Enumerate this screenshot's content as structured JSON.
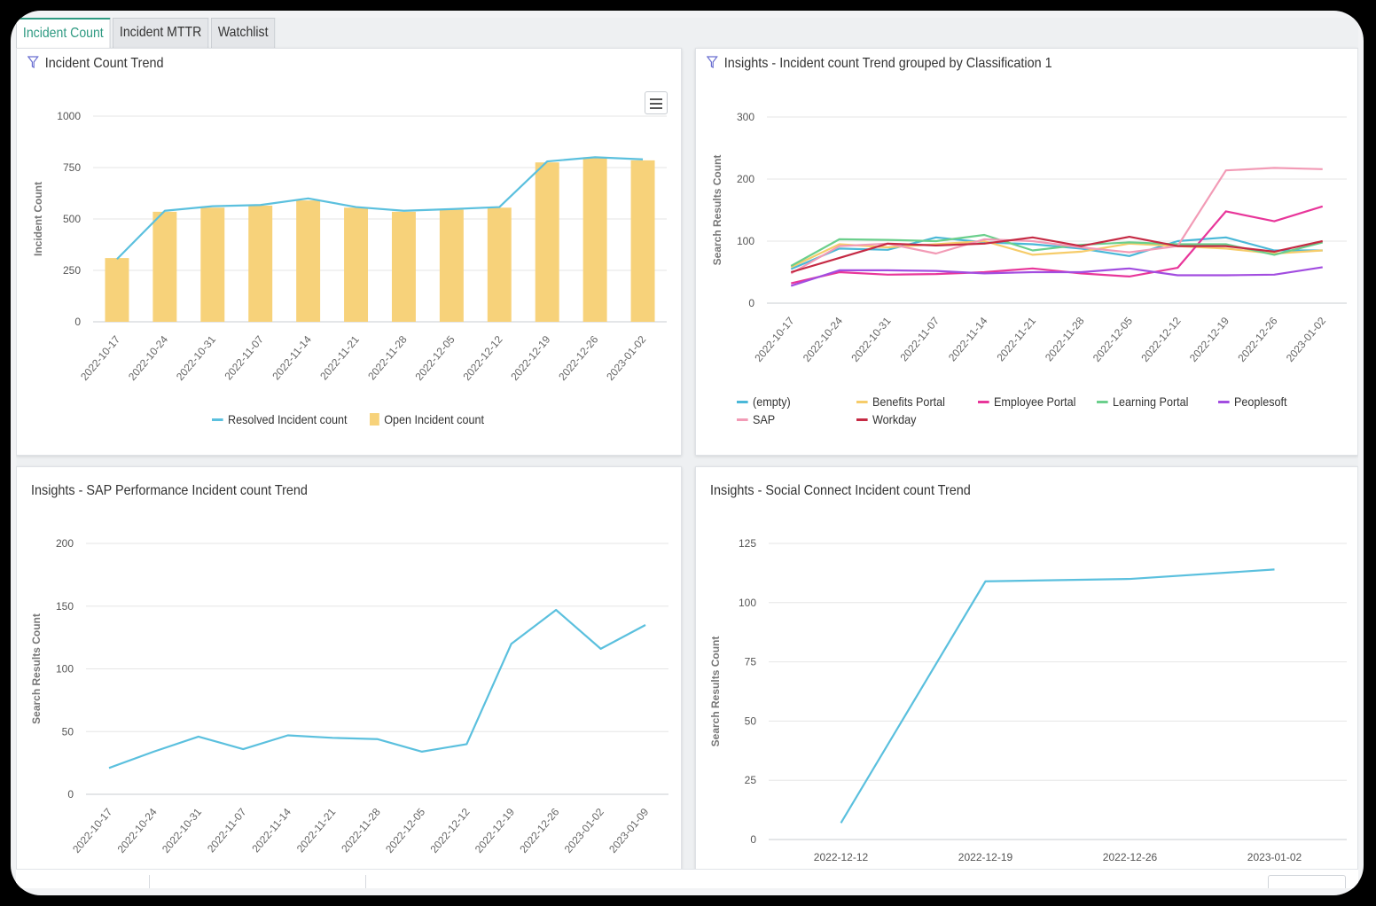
{
  "tabs": [
    "Incident Count",
    "Incident MTTR",
    "Watchlist"
  ],
  "panels": [
    {
      "title": "Incident Count Trend",
      "chart_data": {
        "type": "bar",
        "categories": [
          "2022-10-17",
          "2022-10-24",
          "2022-10-31",
          "2022-11-07",
          "2022-11-14",
          "2022-11-21",
          "2022-11-28",
          "2022-12-05",
          "2022-12-12",
          "2022-12-19",
          "2022-12-26",
          "2023-01-02"
        ],
        "ylabel": "Incident Count",
        "ylim": [
          0,
          1000
        ],
        "yticks": [
          0,
          250,
          500,
          750,
          1000
        ],
        "grid": true,
        "series": [
          {
            "name": "Open Incident count",
            "type": "bar",
            "color": "#f7d27a",
            "values": [
              310,
              535,
              555,
              565,
              590,
              555,
              535,
              545,
              555,
              775,
              800,
              785
            ]
          },
          {
            "name": "Resolved Incident count",
            "type": "line",
            "color": "#5bc0de",
            "values": [
              305,
              540,
              562,
              568,
              600,
              558,
              540,
              548,
              558,
              780,
              800,
              790
            ]
          }
        ],
        "legend_position": "bottom"
      }
    },
    {
      "title": "Insights - Incident count Trend grouped by Classification 1",
      "chart_data": {
        "type": "line",
        "categories": [
          "2022-10-17",
          "2022-10-24",
          "2022-10-31",
          "2022-11-07",
          "2022-11-14",
          "2022-11-21",
          "2022-11-28",
          "2022-12-05",
          "2022-12-12",
          "2022-12-19",
          "2022-12-26",
          "2023-01-02"
        ],
        "ylabel": "Search Results Count",
        "ylim": [
          0,
          300
        ],
        "yticks": [
          0,
          100,
          200,
          300
        ],
        "grid": true,
        "legend_position": "bottom",
        "series": [
          {
            "name": "(empty)",
            "color": "#4ab8d8",
            "values": [
              55,
              88,
              86,
              106,
              98,
              95,
              88,
              76,
              100,
              106,
              85,
              85
            ]
          },
          {
            "name": "Benefits Portal",
            "color": "#f6cc6a",
            "values": [
              58,
              95,
              90,
              95,
              100,
              78,
              83,
              96,
              92,
              88,
              80,
              85
            ]
          },
          {
            "name": "Employee Portal",
            "color": "#e8369a",
            "values": [
              32,
              50,
              46,
              47,
              50,
              56,
              48,
              43,
              57,
              148,
              132,
              156
            ]
          },
          {
            "name": "Learning Portal",
            "color": "#6bcf8c",
            "values": [
              60,
              103,
              102,
              100,
              110,
              85,
              94,
              98,
              95,
              95,
              78,
              98
            ]
          },
          {
            "name": "Peoplesoft",
            "color": "#a24de0",
            "values": [
              28,
              53,
              53,
              52,
              48,
              50,
              50,
              56,
              45,
              45,
              46,
              58
            ]
          },
          {
            "name": "SAP",
            "color": "#f29bb6",
            "values": [
              48,
              92,
              96,
              80,
              103,
              100,
              90,
              82,
              92,
              214,
              218,
              216
            ]
          },
          {
            "name": "Workday",
            "color": "#c52a44",
            "values": [
              50,
              73,
              96,
              93,
              96,
              106,
              92,
              107,
              92,
              92,
              83,
              100
            ]
          }
        ]
      }
    },
    {
      "title": "Insights - SAP Performance Incident count Trend",
      "chart_data": {
        "type": "line",
        "categories": [
          "2022-10-17",
          "2022-10-24",
          "2022-10-31",
          "2022-11-07",
          "2022-11-14",
          "2022-11-21",
          "2022-11-28",
          "2022-12-05",
          "2022-12-12",
          "2022-12-19",
          "2022-12-26",
          "2023-01-02",
          "2023-01-09"
        ],
        "ylabel": "Search Results Count",
        "ylim": [
          0,
          200
        ],
        "yticks": [
          0,
          50,
          100,
          150,
          200
        ],
        "grid": true,
        "series": [
          {
            "name": "",
            "color": "#5bc0de",
            "values": [
              21,
              34,
              46,
              36,
              47,
              45,
              44,
              34,
              40,
              120,
              147,
              116,
              135
            ]
          }
        ]
      }
    },
    {
      "title": "Insights - Social Connect Incident count Trend",
      "chart_data": {
        "type": "line",
        "categories": [
          "2022-12-12",
          "2022-12-19",
          "2022-12-26",
          "2023-01-02"
        ],
        "ylabel": "Search Results Count",
        "ylim": [
          0,
          125
        ],
        "yticks": [
          0,
          25,
          50,
          75,
          100,
          125
        ],
        "grid": true,
        "series": [
          {
            "name": "",
            "color": "#5bc0de",
            "values": [
              7,
              109,
              110,
              114
            ]
          }
        ]
      }
    }
  ],
  "icons": {
    "filter": "filter-icon",
    "menu": "hamburger-menu-icon"
  }
}
